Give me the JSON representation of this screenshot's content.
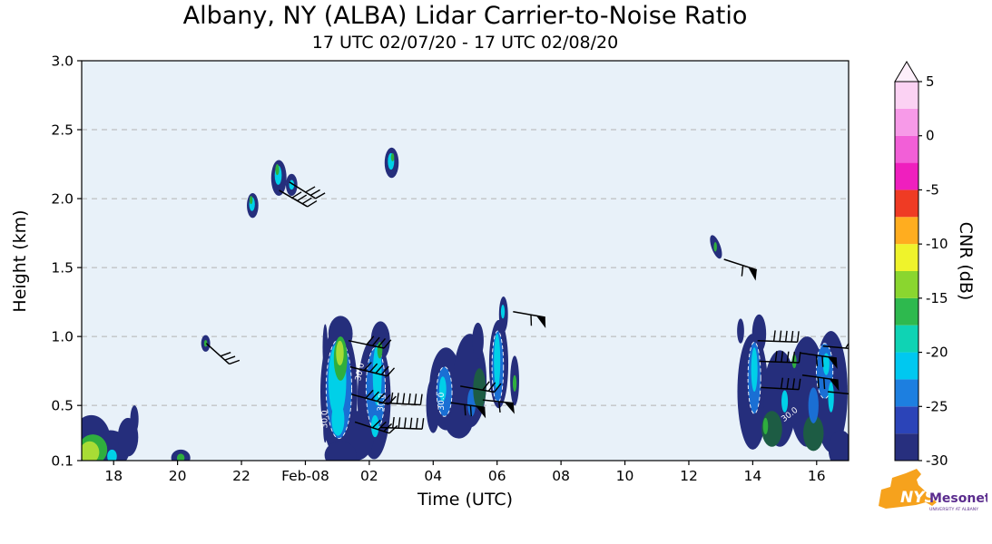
{
  "title": "Albany, NY (ALBA) Lidar Carrier-to-Noise Ratio",
  "subtitle": "17 UTC 02/07/20 - 17 UTC 02/08/20",
  "logo": {
    "org": "NYS",
    "name": "Mesonet",
    "tagline": "UNIVERSITY AT ALBANY",
    "orange": "#f6a21d",
    "purple": "#5b2d8e"
  },
  "chart_data": {
    "type": "heatmap",
    "title": "Albany, NY (ALBA) Lidar Carrier-to-Noise Ratio",
    "subtitle": "17 UTC 02/07/20 - 17 UTC 02/08/20",
    "xlabel": "Time (UTC)",
    "ylabel": "Height (km)",
    "x_range_hours": [
      17,
      41
    ],
    "ylim": [
      0.1,
      3.0
    ],
    "plot_bg": "#e8f1f9",
    "grid_color": "#b3b3b3",
    "gridlines_km": [
      0.5,
      1.0,
      1.5,
      2.0,
      2.5,
      3.0
    ],
    "x_ticks": [
      {
        "t": 18,
        "label": "18"
      },
      {
        "t": 20,
        "label": "20"
      },
      {
        "t": 22,
        "label": "22"
      },
      {
        "t": 24,
        "label": "Feb-08"
      },
      {
        "t": 26,
        "label": "02"
      },
      {
        "t": 28,
        "label": "04"
      },
      {
        "t": 30,
        "label": "06"
      },
      {
        "t": 32,
        "label": "08"
      },
      {
        "t": 34,
        "label": "10"
      },
      {
        "t": 36,
        "label": "12"
      },
      {
        "t": 38,
        "label": "14"
      },
      {
        "t": 40,
        "label": "16"
      }
    ],
    "y_ticks": [
      {
        "v": 3.0,
        "label": "3.0"
      },
      {
        "v": 2.5,
        "label": "2.5"
      },
      {
        "v": 2.0,
        "label": "2.0"
      },
      {
        "v": 1.5,
        "label": "1.5"
      },
      {
        "v": 1.0,
        "label": "1.0"
      },
      {
        "v": 0.5,
        "label": "0.5"
      },
      {
        "v": 0.1,
        "label": "0.1"
      }
    ],
    "colorbar": {
      "label": "CNR (dB)",
      "min": -30,
      "max": 5,
      "over_color": "#fdeffa",
      "ticks": [
        {
          "v": 5,
          "label": "5"
        },
        {
          "v": 0,
          "label": "0"
        },
        {
          "v": -5,
          "label": "-5"
        },
        {
          "v": -10,
          "label": "-10"
        },
        {
          "v": -15,
          "label": "-15"
        },
        {
          "v": -20,
          "label": "-20"
        },
        {
          "v": -25,
          "label": "-25"
        },
        {
          "v": -30,
          "label": "-30"
        }
      ],
      "segments": [
        {
          "from": -30,
          "to": -27.5,
          "color": "#272f7e"
        },
        {
          "from": -27.5,
          "to": -25,
          "color": "#2b44b8"
        },
        {
          "from": -25,
          "to": -22.5,
          "color": "#1d7fe0"
        },
        {
          "from": -22.5,
          "to": -20,
          "color": "#00c8f0"
        },
        {
          "from": -20,
          "to": -17.5,
          "color": "#0fd3b4"
        },
        {
          "from": -17.5,
          "to": -15,
          "color": "#2eb94e"
        },
        {
          "from": -15,
          "to": -12.5,
          "color": "#8ad62f"
        },
        {
          "from": -12.5,
          "to": -10,
          "color": "#eff32b"
        },
        {
          "from": -10,
          "to": -7.5,
          "color": "#ffad1f"
        },
        {
          "from": -7.5,
          "to": -5,
          "color": "#ef3b24"
        },
        {
          "from": -5,
          "to": -2.5,
          "color": "#ef1fbe"
        },
        {
          "from": -2.5,
          "to": 0,
          "color": "#f25fd7"
        },
        {
          "from": 0,
          "to": 2.5,
          "color": "#f79ae8"
        },
        {
          "from": 2.5,
          "to": 5,
          "color": "#fbd2f3"
        }
      ]
    },
    "palette": {
      "navy": "#252e7c",
      "blue": "#1a6fd4",
      "cyan": "#00d0e8",
      "green": "#2fae3e",
      "ygreen": "#a8dc35",
      "dgreen": "#1d5c44"
    },
    "blobs": [
      [
        17.3,
        0.25,
        0.6,
        0.18,
        "navy",
        0,
        0
      ],
      [
        17.9,
        0.18,
        0.6,
        0.14,
        "navy",
        0,
        0
      ],
      [
        18.45,
        0.27,
        0.32,
        0.14,
        "navy",
        0,
        0
      ],
      [
        18.65,
        0.4,
        0.13,
        0.1,
        "navy",
        0,
        0
      ],
      [
        17.35,
        0.18,
        0.45,
        0.11,
        "green",
        0,
        0
      ],
      [
        17.25,
        0.16,
        0.3,
        0.08,
        "ygreen",
        0,
        0
      ],
      [
        17.95,
        0.13,
        0.15,
        0.05,
        "cyan",
        0,
        0
      ],
      [
        20.1,
        0.12,
        0.3,
        0.06,
        "navy",
        0,
        0
      ],
      [
        20.1,
        0.12,
        0.12,
        0.03,
        "green",
        0,
        0
      ],
      [
        20.88,
        0.95,
        0.14,
        0.06,
        "navy",
        0,
        0
      ],
      [
        20.88,
        0.95,
        0.05,
        0.025,
        "green",
        0,
        0
      ],
      [
        22.35,
        1.95,
        0.18,
        0.09,
        "navy",
        0,
        0
      ],
      [
        22.33,
        1.96,
        0.09,
        0.05,
        "cyan",
        0,
        0
      ],
      [
        22.3,
        1.99,
        0.05,
        0.03,
        "green",
        0,
        0
      ],
      [
        23.17,
        2.15,
        0.24,
        0.13,
        "navy",
        0,
        0
      ],
      [
        23.15,
        2.17,
        0.11,
        0.07,
        "cyan",
        0,
        0
      ],
      [
        23.12,
        2.21,
        0.06,
        0.04,
        "green",
        0,
        0
      ],
      [
        23.57,
        2.1,
        0.18,
        0.08,
        "navy",
        0,
        0
      ],
      [
        23.57,
        2.1,
        0.08,
        0.035,
        "cyan",
        0,
        0
      ],
      [
        26.7,
        2.26,
        0.22,
        0.11,
        "navy",
        0,
        0
      ],
      [
        26.68,
        2.27,
        0.1,
        0.06,
        "cyan",
        0,
        0
      ],
      [
        26.73,
        2.3,
        0.05,
        0.03,
        "green",
        0,
        0
      ],
      [
        25.05,
        0.6,
        0.58,
        0.48,
        "navy",
        0,
        0
      ],
      [
        25.1,
        1.02,
        0.38,
        0.13,
        "navy",
        0,
        0
      ],
      [
        26.15,
        0.55,
        0.52,
        0.44,
        "navy",
        0,
        0
      ],
      [
        26.35,
        0.97,
        0.3,
        0.14,
        "navy",
        0,
        0
      ],
      [
        25.6,
        0.28,
        0.55,
        0.18,
        "navy",
        0,
        0
      ],
      [
        25.1,
        0.14,
        0.5,
        0.1,
        "navy",
        0,
        0
      ],
      [
        24.62,
        0.92,
        0.08,
        0.17,
        "navy",
        0,
        0
      ],
      [
        24.58,
        0.6,
        0.07,
        0.13,
        "navy",
        0,
        0
      ],
      [
        24.62,
        0.33,
        0.06,
        0.1,
        "navy",
        0,
        0
      ],
      [
        25.05,
        0.62,
        0.4,
        0.36,
        "blue",
        0,
        1
      ],
      [
        26.2,
        0.62,
        0.3,
        0.3,
        "blue",
        0,
        1
      ],
      [
        25.0,
        0.68,
        0.28,
        0.27,
        "cyan",
        0,
        0
      ],
      [
        25.02,
        0.4,
        0.2,
        0.12,
        "cyan",
        0,
        0
      ],
      [
        26.25,
        0.72,
        0.14,
        0.22,
        "cyan",
        0,
        0
      ],
      [
        26.18,
        0.35,
        0.12,
        0.08,
        "cyan",
        0,
        0
      ],
      [
        25.1,
        0.84,
        0.21,
        0.16,
        "green",
        0,
        0
      ],
      [
        25.08,
        0.88,
        0.12,
        0.09,
        "ygreen",
        0,
        0
      ],
      [
        26.33,
        0.9,
        0.08,
        0.06,
        "green",
        0,
        0
      ],
      [
        28.4,
        0.62,
        0.52,
        0.3,
        "navy",
        0,
        0
      ],
      [
        29.15,
        0.68,
        0.52,
        0.34,
        "navy",
        0,
        0
      ],
      [
        29.4,
        0.97,
        0.18,
        0.13,
        "navy",
        0,
        0
      ],
      [
        28.0,
        0.5,
        0.22,
        0.2,
        "navy",
        0,
        0
      ],
      [
        28.8,
        0.4,
        0.45,
        0.14,
        "navy",
        0,
        0
      ],
      [
        28.35,
        0.6,
        0.24,
        0.18,
        "blue",
        0,
        1
      ],
      [
        28.3,
        0.62,
        0.11,
        0.09,
        "cyan",
        0,
        0
      ],
      [
        29.2,
        0.52,
        0.13,
        0.1,
        "blue",
        0,
        0
      ],
      [
        29.45,
        0.62,
        0.2,
        0.15,
        "dgreen",
        0,
        0
      ],
      [
        30.05,
        0.8,
        0.3,
        0.32,
        "navy",
        0,
        0
      ],
      [
        30.2,
        1.16,
        0.14,
        0.13,
        "navy",
        0,
        0
      ],
      [
        30.55,
        0.68,
        0.14,
        0.18,
        "navy",
        0,
        0
      ],
      [
        30.02,
        0.78,
        0.18,
        0.26,
        "blue",
        0,
        1
      ],
      [
        30.0,
        0.82,
        0.1,
        0.2,
        "cyan",
        0,
        0
      ],
      [
        30.18,
        1.18,
        0.06,
        0.05,
        "cyan",
        0,
        0
      ],
      [
        30.55,
        0.66,
        0.06,
        0.06,
        "green",
        0,
        0
      ],
      [
        36.85,
        1.65,
        0.14,
        0.09,
        "navy",
        -20,
        0
      ],
      [
        36.83,
        1.65,
        0.05,
        0.035,
        "green",
        0,
        0
      ],
      [
        38.0,
        0.6,
        0.48,
        0.42,
        "navy",
        0,
        0
      ],
      [
        38.85,
        0.55,
        0.52,
        0.35,
        "navy",
        0,
        0
      ],
      [
        39.7,
        0.6,
        0.58,
        0.4,
        "navy",
        0,
        0
      ],
      [
        40.45,
        0.6,
        0.52,
        0.44,
        "navy",
        0,
        0
      ],
      [
        40.75,
        0.18,
        0.38,
        0.14,
        "navy",
        0,
        0
      ],
      [
        38.2,
        1.02,
        0.22,
        0.14,
        "navy",
        0,
        0
      ],
      [
        37.62,
        1.04,
        0.11,
        0.09,
        "navy",
        0,
        0
      ],
      [
        38.6,
        0.33,
        0.32,
        0.13,
        "dgreen",
        0,
        0
      ],
      [
        39.9,
        0.3,
        0.32,
        0.13,
        "dgreen",
        0,
        0
      ],
      [
        38.05,
        0.7,
        0.2,
        0.26,
        "blue",
        0,
        1
      ],
      [
        40.25,
        0.75,
        0.26,
        0.2,
        "blue",
        0,
        1
      ],
      [
        39.9,
        0.5,
        0.16,
        0.13,
        "blue",
        0,
        0
      ],
      [
        38.05,
        0.76,
        0.1,
        0.16,
        "cyan",
        0,
        0
      ],
      [
        39.0,
        0.53,
        0.1,
        0.08,
        "cyan",
        0,
        0
      ],
      [
        40.45,
        0.56,
        0.09,
        0.11,
        "cyan",
        0,
        0
      ],
      [
        40.3,
        0.8,
        0.1,
        0.08,
        "cyan",
        0,
        0
      ],
      [
        38.4,
        0.35,
        0.08,
        0.06,
        "green",
        0,
        0
      ],
      [
        39.3,
        0.82,
        0.07,
        0.05,
        "green",
        0,
        0
      ]
    ],
    "contour_labels": [
      [
        24.68,
        0.4,
        "30.0",
        -90
      ],
      [
        25.78,
        0.74,
        "30.0",
        -78
      ],
      [
        26.45,
        0.52,
        "30.0",
        -85
      ],
      [
        28.33,
        0.53,
        "30.0",
        -90
      ],
      [
        39.2,
        0.42,
        "30.0",
        -38
      ]
    ],
    "wind_barbs": [
      [
        20.9,
        0.95,
        -42,
        34,
        3,
        0
      ],
      [
        23.18,
        2.06,
        -30,
        36,
        4,
        0
      ],
      [
        23.5,
        2.12,
        -32,
        34,
        3,
        0
      ],
      [
        25.35,
        0.97,
        -12,
        40,
        4,
        0
      ],
      [
        25.4,
        0.78,
        -14,
        42,
        5,
        0
      ],
      [
        25.45,
        0.58,
        -15,
        42,
        5,
        0
      ],
      [
        25.55,
        0.38,
        -18,
        40,
        4,
        0
      ],
      [
        26.3,
        0.52,
        -3,
        46,
        6,
        0,
        85
      ],
      [
        26.35,
        0.34,
        -2,
        46,
        6,
        0,
        85
      ],
      [
        28.55,
        0.52,
        -8,
        38,
        2,
        1,
        -78
      ],
      [
        28.85,
        0.64,
        -10,
        38,
        3,
        0
      ],
      [
        29.55,
        0.54,
        -6,
        34,
        1,
        1,
        -78
      ],
      [
        30.5,
        1.18,
        -10,
        36,
        1,
        1,
        -78
      ],
      [
        37.1,
        1.56,
        -18,
        38,
        1,
        1,
        -78
      ],
      [
        38.15,
        0.97,
        -2,
        44,
        5,
        0,
        85
      ],
      [
        38.2,
        0.82,
        -2,
        44,
        5,
        0,
        85
      ],
      [
        38.25,
        0.63,
        -3,
        42,
        4,
        0,
        85
      ],
      [
        39.5,
        0.88,
        -8,
        40,
        2,
        1,
        -78
      ],
      [
        39.55,
        0.72,
        -8,
        40,
        2,
        1,
        -78
      ],
      [
        40.2,
        0.93,
        -5,
        38,
        3,
        0
      ],
      [
        40.35,
        0.6,
        -6,
        36,
        3,
        0
      ]
    ]
  }
}
